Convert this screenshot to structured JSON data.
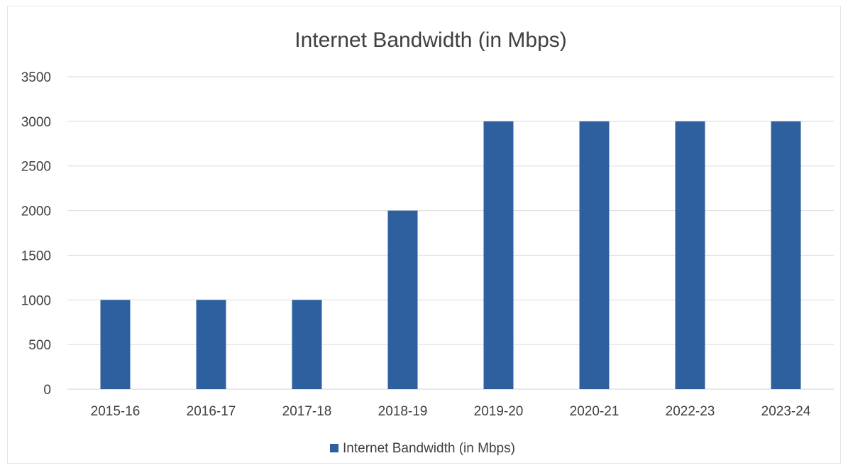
{
  "chart_data": {
    "type": "bar",
    "title": "Internet Bandwidth (in Mbps)",
    "xlabel": "",
    "ylabel": "",
    "categories": [
      "2015-16",
      "2016-17",
      "2017-18",
      "2018-19",
      "2019-20",
      "2020-21",
      "2022-23",
      "2023-24"
    ],
    "series": [
      {
        "name": "Internet Bandwidth (in Mbps)",
        "values": [
          1000,
          1000,
          1000,
          2000,
          3000,
          3000,
          3000,
          3000
        ],
        "color": "#2e5f9e"
      }
    ],
    "ylim": [
      0,
      3500
    ],
    "yticks": [
      0,
      500,
      1000,
      1500,
      2000,
      2500,
      3000,
      3500
    ],
    "grid": true,
    "legend_position": "bottom"
  }
}
